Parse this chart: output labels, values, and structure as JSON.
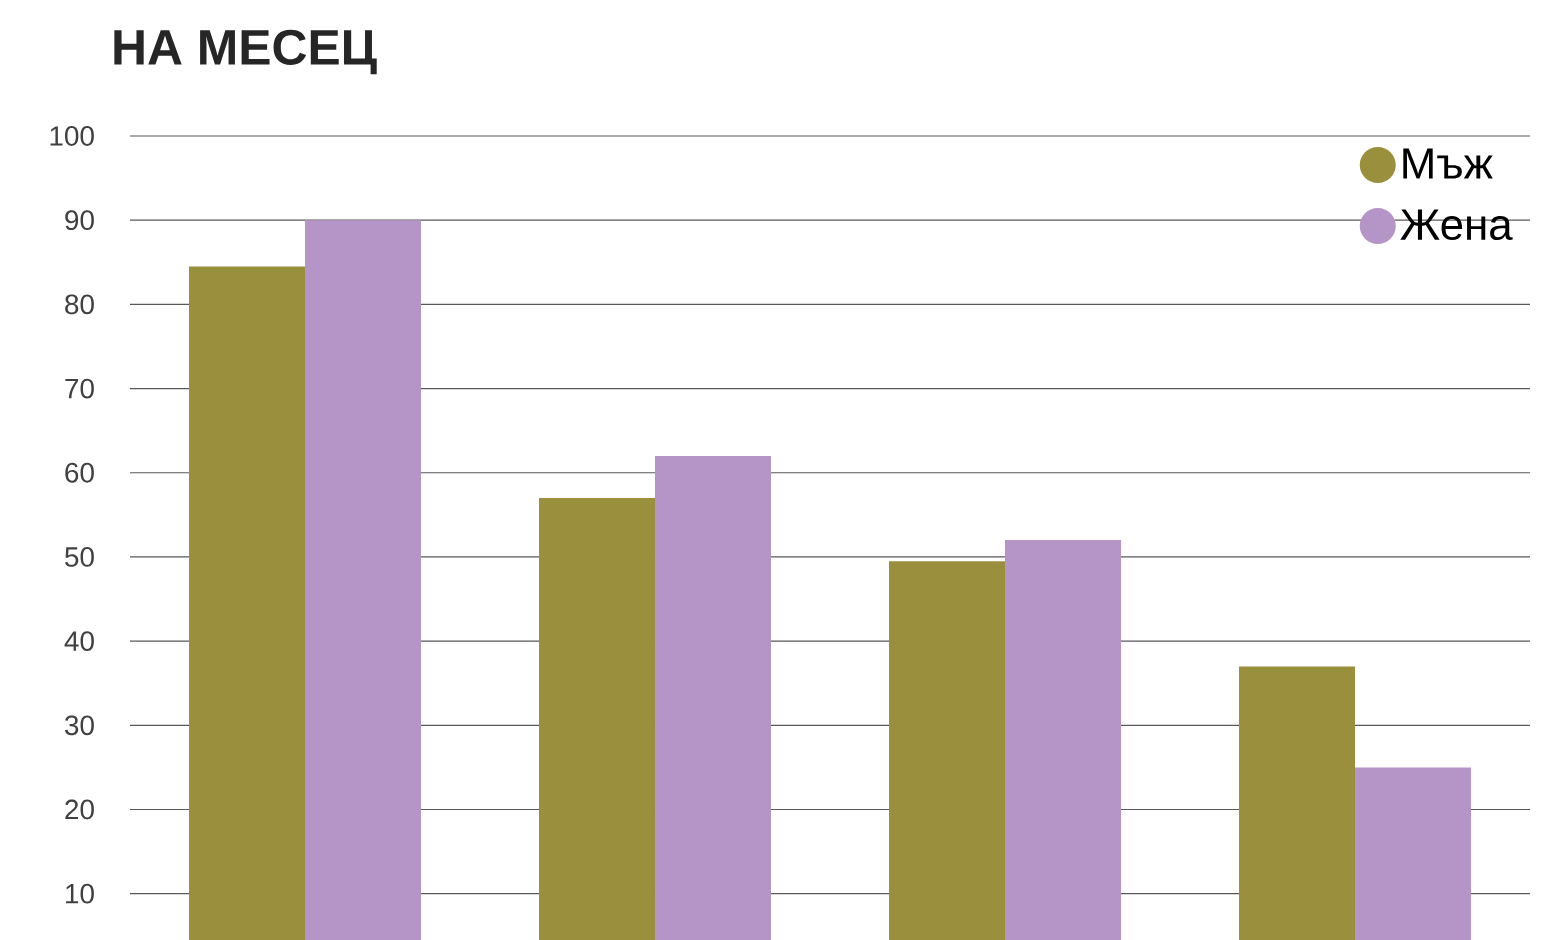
{
  "chart_data": {
    "type": "bar",
    "title": "НА МЕСЕЦ",
    "categories": [
      null,
      null,
      null,
      null
    ],
    "series": [
      {
        "name": "Мъж",
        "color": "#9a8f3c",
        "values": [
          84.5,
          57,
          49.5,
          37
        ]
      },
      {
        "name": "Жена",
        "color": "#b594c8",
        "values": [
          90,
          62,
          52,
          25
        ]
      }
    ],
    "ylim": [
      4.5,
      100
    ],
    "yticks": [
      10,
      20,
      30,
      40,
      50,
      60,
      70,
      80,
      90,
      100
    ],
    "grid": "y",
    "legend": "top right"
  }
}
